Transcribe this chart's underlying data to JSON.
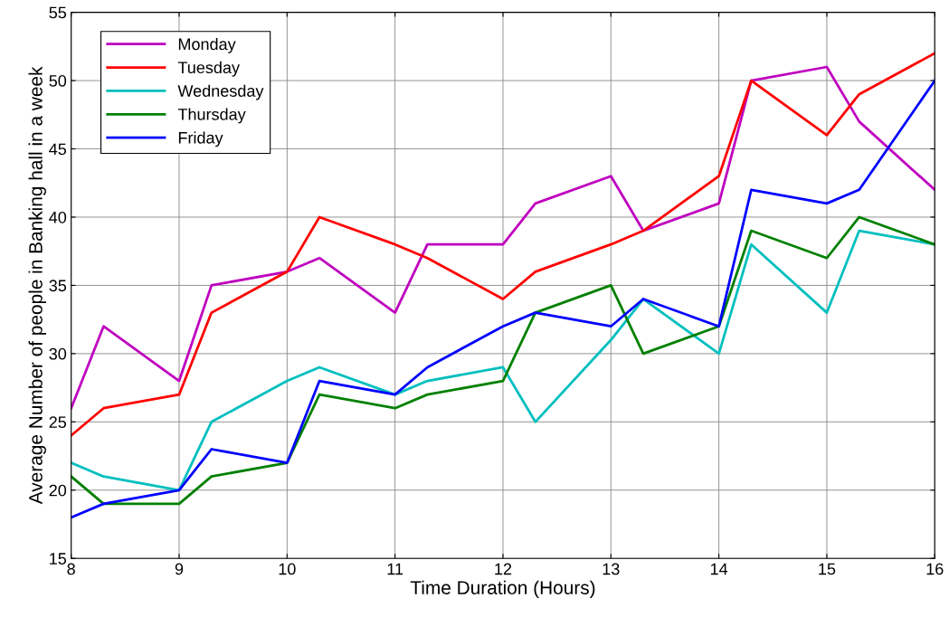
{
  "chart_data": {
    "type": "line",
    "xlabel": "Time Duration (Hours)",
    "ylabel": "Average Number of people in Banking hall in a week",
    "x": [
      8,
      8.3,
      9,
      9.3,
      10,
      10.3,
      11,
      11.3,
      12,
      12.3,
      13,
      13.3,
      14,
      14.3,
      15,
      15.3,
      16
    ],
    "series": [
      {
        "name": "Monday",
        "color": "#bf00bf",
        "values": [
          26,
          32,
          28,
          35,
          36,
          37,
          33,
          38,
          38,
          41,
          43,
          39,
          41,
          50,
          51,
          47,
          42
        ]
      },
      {
        "name": "Tuesday",
        "color": "#ff0000",
        "values": [
          24,
          26,
          27,
          33,
          36,
          40,
          38,
          37,
          34,
          36,
          38,
          39,
          43,
          50,
          46,
          49,
          52
        ]
      },
      {
        "name": "Wednesday",
        "color": "#00bfbf",
        "values": [
          22,
          21,
          20,
          25,
          28,
          29,
          27,
          28,
          29,
          25,
          31,
          34,
          30,
          38,
          33,
          39,
          38
        ]
      },
      {
        "name": "Thursday",
        "color": "#008000",
        "values": [
          21,
          19,
          19,
          21,
          22,
          27,
          26,
          27,
          28,
          33,
          35,
          30,
          32,
          39,
          37,
          40,
          38
        ]
      },
      {
        "name": "Friday",
        "color": "#0000ff",
        "values": [
          18,
          19,
          20,
          23,
          22,
          28,
          27,
          29,
          32,
          33,
          32,
          34,
          32,
          42,
          41,
          42,
          50
        ]
      }
    ],
    "xlim": [
      8,
      16
    ],
    "xticks": [
      8,
      9,
      10,
      11,
      12,
      13,
      14,
      15,
      16
    ],
    "ylim": [
      15,
      55
    ],
    "yticks": [
      15,
      20,
      25,
      30,
      35,
      40,
      45,
      50,
      55
    ],
    "grid": true,
    "legend": "top left",
    "line_style": "solid"
  }
}
